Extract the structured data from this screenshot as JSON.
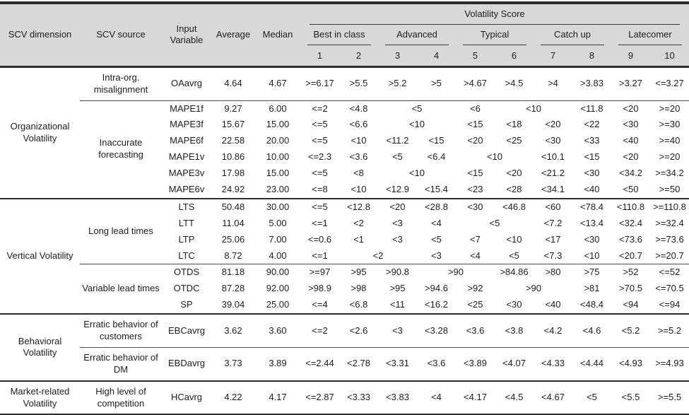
{
  "colors": {
    "header_bg": "#d8d8d8",
    "border": "#2b2b2b",
    "text": "#1c1c1c"
  },
  "table": {
    "header": {
      "scv_dimension": "SCV dimension",
      "scv_source": "SCV source",
      "input_variable": "Input Variable",
      "average": "Average",
      "median": "Median",
      "volatility_score": "Volatility Score",
      "classes": [
        "Best in class",
        "Advanced",
        "Typical",
        "Catch up",
        "Latecomer"
      ],
      "score_numbers": [
        "1",
        "2",
        "3",
        "4",
        "5",
        "6",
        "7",
        "8",
        "9",
        "10"
      ]
    },
    "groups": [
      {
        "dimension": "Organizational Volatility",
        "sources": [
          {
            "source": "Intra-org. misalignment",
            "rows": [
              {
                "variable": "OAavrg",
                "average": "4.64",
                "median": "4.67",
                "scores": [
                  [
                    ">=6.17",
                    1
                  ],
                  [
                    ">5.5",
                    1
                  ],
                  [
                    ">5.2",
                    1
                  ],
                  [
                    ">5",
                    1
                  ],
                  [
                    ">4.67",
                    1
                  ],
                  [
                    ">4.5",
                    1
                  ],
                  [
                    ">4",
                    1
                  ],
                  [
                    ">3.83",
                    1
                  ],
                  [
                    ">3.27",
                    1
                  ],
                  [
                    "<=3.27",
                    1
                  ]
                ]
              }
            ]
          },
          {
            "source": "Inaccurate forecasting",
            "rows": [
              {
                "variable": "MAPE1f",
                "average": "9.27",
                "median": "6.00",
                "scores": [
                  [
                    "<=2",
                    1
                  ],
                  [
                    "<4.8",
                    1
                  ],
                  [
                    "<5",
                    2
                  ],
                  [
                    "<6",
                    1
                  ],
                  [
                    "<10",
                    2
                  ],
                  [
                    "<11.8",
                    1
                  ],
                  [
                    "<20",
                    1
                  ],
                  [
                    ">=20",
                    1
                  ]
                ]
              },
              {
                "variable": "MAPE3f",
                "average": "15.67",
                "median": "15.00",
                "scores": [
                  [
                    "<=5",
                    1
                  ],
                  [
                    "<6.6",
                    1
                  ],
                  [
                    "<10",
                    2
                  ],
                  [
                    "<15",
                    1
                  ],
                  [
                    "<18",
                    1
                  ],
                  [
                    "<20",
                    1
                  ],
                  [
                    "<22",
                    1
                  ],
                  [
                    "<30",
                    1
                  ],
                  [
                    ">=30",
                    1
                  ]
                ]
              },
              {
                "variable": "MAPE6f",
                "average": "22.58",
                "median": "20.00",
                "scores": [
                  [
                    "<=5",
                    1
                  ],
                  [
                    "<10",
                    1
                  ],
                  [
                    "<11.2",
                    1
                  ],
                  [
                    "<15",
                    1
                  ],
                  [
                    "<20",
                    1
                  ],
                  [
                    "<25",
                    1
                  ],
                  [
                    "<30",
                    1
                  ],
                  [
                    "<33",
                    1
                  ],
                  [
                    "<40",
                    1
                  ],
                  [
                    ">=40",
                    1
                  ]
                ]
              },
              {
                "variable": "MAPE1v",
                "average": "10.86",
                "median": "10.00",
                "scores": [
                  [
                    "<=2.3",
                    1
                  ],
                  [
                    "<3.6",
                    1
                  ],
                  [
                    "<5",
                    1
                  ],
                  [
                    "<6.4",
                    1
                  ],
                  [
                    "<10",
                    2
                  ],
                  [
                    "<10.1",
                    1
                  ],
                  [
                    "<15",
                    1
                  ],
                  [
                    "<20",
                    1
                  ],
                  [
                    ">=20",
                    1
                  ]
                ]
              },
              {
                "variable": "MAPE3v",
                "average": "17.98",
                "median": "15.00",
                "scores": [
                  [
                    "<=5",
                    1
                  ],
                  [
                    "<8",
                    1
                  ],
                  [
                    "<10",
                    2
                  ],
                  [
                    "<15",
                    1
                  ],
                  [
                    "<20",
                    1
                  ],
                  [
                    "<21.2",
                    1
                  ],
                  [
                    "<30",
                    1
                  ],
                  [
                    "<34.2",
                    1
                  ],
                  [
                    ">=34.2",
                    1
                  ]
                ]
              },
              {
                "variable": "MAPE6v",
                "average": "24.92",
                "median": "23.00",
                "scores": [
                  [
                    "<=8",
                    1
                  ],
                  [
                    "<10",
                    1
                  ],
                  [
                    "<12.9",
                    1
                  ],
                  [
                    "<15.4",
                    1
                  ],
                  [
                    "<23",
                    1
                  ],
                  [
                    "<28",
                    1
                  ],
                  [
                    "<34.1",
                    1
                  ],
                  [
                    "<40",
                    1
                  ],
                  [
                    "<50",
                    1
                  ],
                  [
                    ">=50",
                    1
                  ]
                ]
              }
            ]
          }
        ]
      },
      {
        "dimension": "Vertical Volatility",
        "sources": [
          {
            "source": "Long lead times",
            "rows": [
              {
                "variable": "LTS",
                "average": "50.48",
                "median": "30.00",
                "scores": [
                  [
                    "<=5",
                    1
                  ],
                  [
                    "<12.8",
                    1
                  ],
                  [
                    "<20",
                    1
                  ],
                  [
                    "<28.8",
                    1
                  ],
                  [
                    "<30",
                    1
                  ],
                  [
                    "<46.8",
                    1
                  ],
                  [
                    "<60",
                    1
                  ],
                  [
                    "<78.4",
                    1
                  ],
                  [
                    "<110.8",
                    1
                  ],
                  [
                    ">=110.8",
                    1
                  ]
                ]
              },
              {
                "variable": "LTT",
                "average": "11.04",
                "median": "5.00",
                "scores": [
                  [
                    "<=1",
                    1
                  ],
                  [
                    "<2",
                    1
                  ],
                  [
                    "<3",
                    1
                  ],
                  [
                    "<4",
                    1
                  ],
                  [
                    "<5",
                    2
                  ],
                  [
                    "<7.2",
                    1
                  ],
                  [
                    "<13.4",
                    1
                  ],
                  [
                    "<32.4",
                    1
                  ],
                  [
                    ">=32.4",
                    1
                  ]
                ]
              },
              {
                "variable": "LTP",
                "average": "25.06",
                "median": "7.00",
                "scores": [
                  [
                    "<=0.6",
                    1
                  ],
                  [
                    "<1",
                    1
                  ],
                  [
                    "<3",
                    1
                  ],
                  [
                    "<5",
                    1
                  ],
                  [
                    "<7",
                    1
                  ],
                  [
                    "<10",
                    1
                  ],
                  [
                    "<17",
                    1
                  ],
                  [
                    "<30",
                    1
                  ],
                  [
                    "<73.6",
                    1
                  ],
                  [
                    ">=73.6",
                    1
                  ]
                ]
              },
              {
                "variable": "LTC",
                "average": "8.72",
                "median": "4.00",
                "scores": [
                  [
                    "<=1",
                    1
                  ],
                  [
                    "<2",
                    2
                  ],
                  [
                    "<3",
                    1
                  ],
                  [
                    "<4",
                    1
                  ],
                  [
                    "<5",
                    1
                  ],
                  [
                    "<7.3",
                    1
                  ],
                  [
                    "<10",
                    1
                  ],
                  [
                    "<20.7",
                    1
                  ],
                  [
                    ">=20.7",
                    1
                  ]
                ]
              }
            ]
          },
          {
            "source": "Variable lead times",
            "rows": [
              {
                "variable": "OTDS",
                "average": "81.18",
                "median": "90.00",
                "scores": [
                  [
                    ">=97",
                    1
                  ],
                  [
                    ">95",
                    1
                  ],
                  [
                    ">90.8",
                    1
                  ],
                  [
                    ">90",
                    2
                  ],
                  [
                    ">84.86",
                    1
                  ],
                  [
                    ">80",
                    1
                  ],
                  [
                    ">75",
                    1
                  ],
                  [
                    ">52",
                    1
                  ],
                  [
                    "<=52",
                    1
                  ]
                ]
              },
              {
                "variable": "OTDC",
                "average": "87.28",
                "median": "92.00",
                "scores": [
                  [
                    ">98.9",
                    1
                  ],
                  [
                    ">98",
                    1
                  ],
                  [
                    ">95",
                    1
                  ],
                  [
                    ">94.6",
                    1
                  ],
                  [
                    ">92",
                    1
                  ],
                  [
                    ">90",
                    2
                  ],
                  [
                    ">81",
                    1
                  ],
                  [
                    ">70.5",
                    1
                  ],
                  [
                    "<=70.5",
                    1
                  ]
                ]
              },
              {
                "variable": "SP",
                "average": "39.04",
                "median": "25.00",
                "scores": [
                  [
                    "<=4",
                    1
                  ],
                  [
                    "<6.8",
                    1
                  ],
                  [
                    "<11",
                    1
                  ],
                  [
                    "<16.2",
                    1
                  ],
                  [
                    "<25",
                    1
                  ],
                  [
                    "<30",
                    1
                  ],
                  [
                    "<40",
                    1
                  ],
                  [
                    "<48.4",
                    1
                  ],
                  [
                    "<94",
                    1
                  ],
                  [
                    "<=94",
                    1
                  ]
                ]
              }
            ]
          }
        ]
      },
      {
        "dimension": "Behavioral Volatility",
        "sources": [
          {
            "source": "Erratic behavior of customers",
            "rows": [
              {
                "variable": "EBCavrg",
                "average": "3.62",
                "median": "3.60",
                "scores": [
                  [
                    "<=2",
                    1
                  ],
                  [
                    "<2.6",
                    1
                  ],
                  [
                    "<3",
                    1
                  ],
                  [
                    "<3.28",
                    1
                  ],
                  [
                    "<3.6",
                    1
                  ],
                  [
                    "<3.8",
                    1
                  ],
                  [
                    "<4.2",
                    1
                  ],
                  [
                    "<4.6",
                    1
                  ],
                  [
                    "<5.2",
                    1
                  ],
                  [
                    ">=5.2",
                    1
                  ]
                ]
              }
            ]
          },
          {
            "source": "Erratic behavior of DM",
            "rows": [
              {
                "variable": "EBDavrg",
                "average": "3.73",
                "median": "3.89",
                "scores": [
                  [
                    "<=2.44",
                    1
                  ],
                  [
                    "<2.78",
                    1
                  ],
                  [
                    "<3.31",
                    1
                  ],
                  [
                    "<3.6",
                    1
                  ],
                  [
                    "<3.89",
                    1
                  ],
                  [
                    "<4.07",
                    1
                  ],
                  [
                    "<4.33",
                    1
                  ],
                  [
                    "<4.44",
                    1
                  ],
                  [
                    "<4.93",
                    1
                  ],
                  [
                    ">=4.93",
                    1
                  ]
                ]
              }
            ]
          }
        ]
      },
      {
        "dimension": "Market-related Volatility",
        "sources": [
          {
            "source": "High level of competition",
            "rows": [
              {
                "variable": "HCavrg",
                "average": "4.22",
                "median": "4.17",
                "scores": [
                  [
                    "<=2.87",
                    1
                  ],
                  [
                    "<3.33",
                    1
                  ],
                  [
                    "<3.83",
                    1
                  ],
                  [
                    "<4",
                    1
                  ],
                  [
                    "<4.17",
                    1
                  ],
                  [
                    "<4.5",
                    1
                  ],
                  [
                    "<4.67",
                    1
                  ],
                  [
                    "<5",
                    1
                  ],
                  [
                    "<5.5",
                    1
                  ],
                  [
                    ">=5.5",
                    1
                  ]
                ]
              }
            ]
          }
        ]
      }
    ]
  }
}
